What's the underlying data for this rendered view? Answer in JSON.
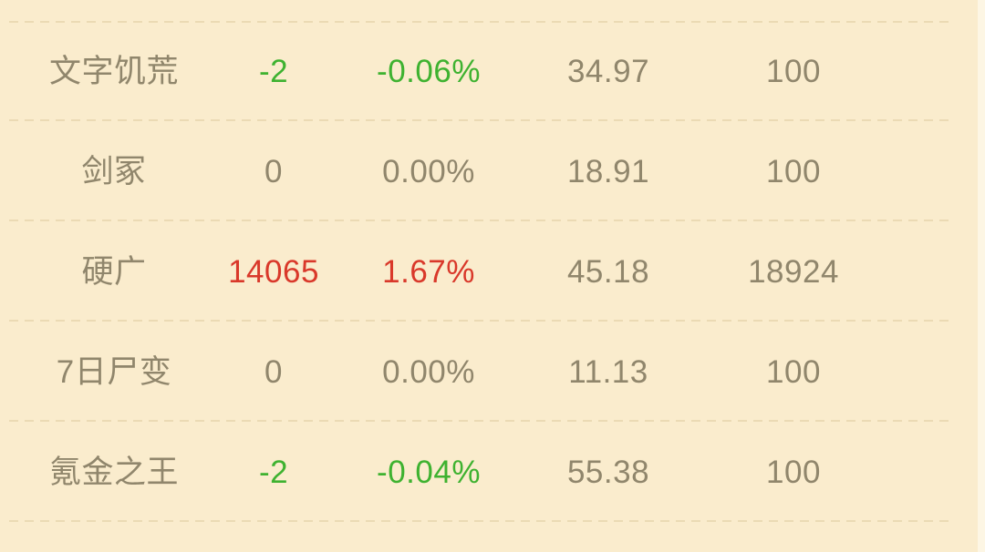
{
  "table": {
    "rows": [
      {
        "name": "文字饥荒",
        "change": "-2",
        "change_pct": "-0.06%",
        "price": "34.97",
        "volume": "100",
        "trend": "down"
      },
      {
        "name": "剑冢",
        "change": "0",
        "change_pct": "0.00%",
        "price": "18.91",
        "volume": "100",
        "trend": "flat"
      },
      {
        "name": "硬广",
        "change": "14065",
        "change_pct": "1.67%",
        "price": "45.18",
        "volume": "18924",
        "trend": "up"
      },
      {
        "name": "7日尸变",
        "change": "0",
        "change_pct": "0.00%",
        "price": "11.13",
        "volume": "100",
        "trend": "flat"
      },
      {
        "name": "氪金之王",
        "change": "-2",
        "change_pct": "-0.04%",
        "price": "55.38",
        "volume": "100",
        "trend": "down"
      }
    ]
  },
  "colors": {
    "background": "#faeccd",
    "edge_strip": "#fdf6e4",
    "divider": "#e7d5ae",
    "neutral_text": "#90866c",
    "up": "#d9382a",
    "down": "#3eb230"
  }
}
